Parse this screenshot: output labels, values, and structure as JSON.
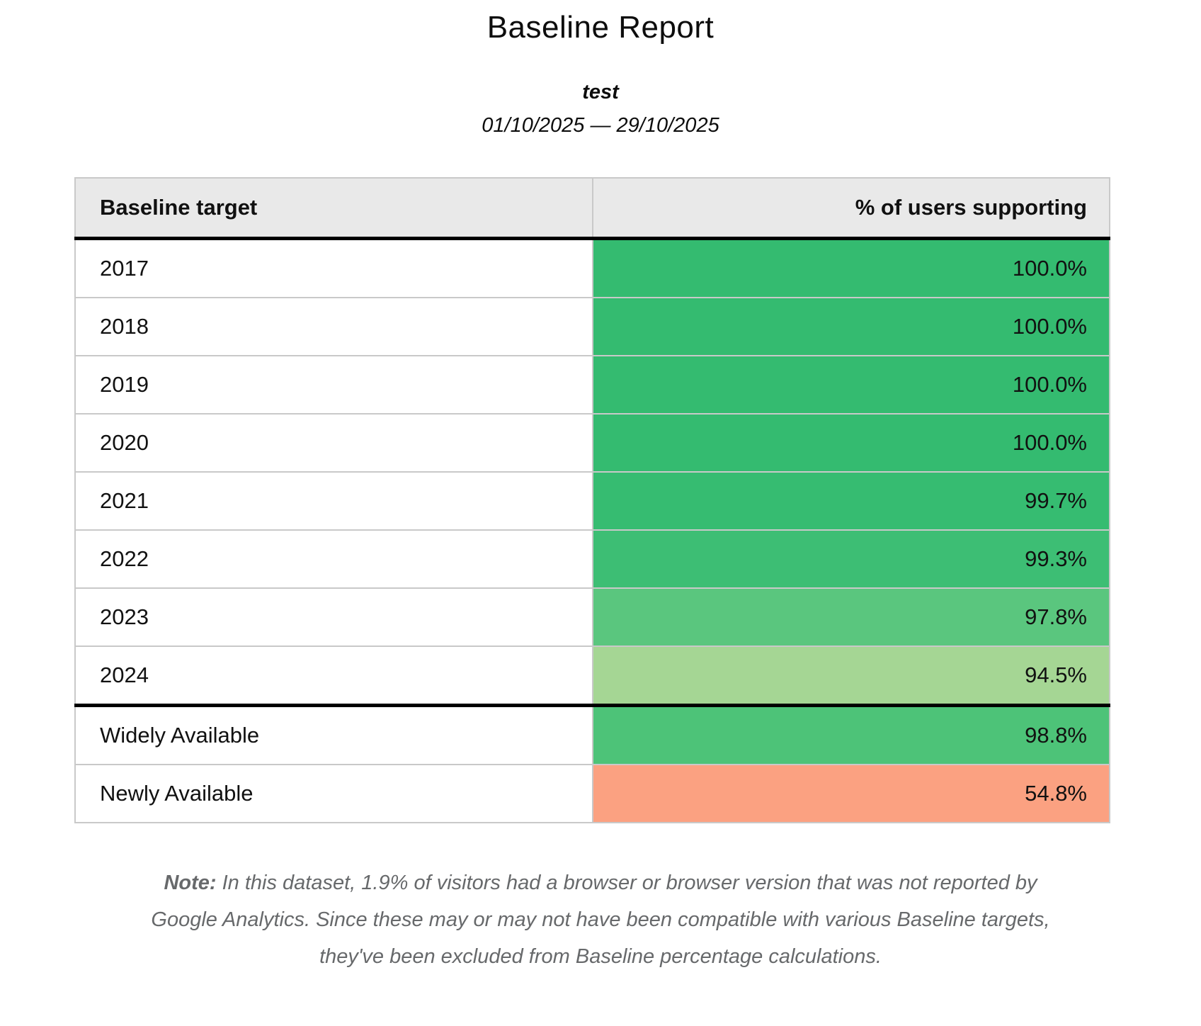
{
  "header": {
    "title": "Baseline Report",
    "subtitle": "test",
    "date_range": "01/10/2025 — 29/10/2025"
  },
  "table": {
    "columns": [
      "Baseline target",
      "% of users supporting"
    ],
    "rows": [
      {
        "label": "2017",
        "value": "100.0%",
        "color": "#34bb70",
        "section_break": false
      },
      {
        "label": "2018",
        "value": "100.0%",
        "color": "#34bb70",
        "section_break": false
      },
      {
        "label": "2019",
        "value": "100.0%",
        "color": "#34bb70",
        "section_break": false
      },
      {
        "label": "2020",
        "value": "100.0%",
        "color": "#34bb70",
        "section_break": false
      },
      {
        "label": "2021",
        "value": "99.7%",
        "color": "#36bc71",
        "section_break": false
      },
      {
        "label": "2022",
        "value": "99.3%",
        "color": "#3dbe74",
        "section_break": false
      },
      {
        "label": "2023",
        "value": "97.8%",
        "color": "#5ac67e",
        "section_break": false
      },
      {
        "label": "2024",
        "value": "94.5%",
        "color": "#a5d694",
        "section_break": false
      },
      {
        "label": "Widely Available",
        "value": "98.8%",
        "color": "#4dc378",
        "section_break": true
      },
      {
        "label": "Newly Available",
        "value": "54.8%",
        "color": "#fba181",
        "section_break": false
      }
    ]
  },
  "note": {
    "label": "Note:",
    "text": "In this dataset, 1.9% of visitors had a browser or browser version that was not reported by Google Analytics. Since these may or may not have been compatible with various Baseline targets, they've been excluded from Baseline percentage calculations."
  },
  "colors": {
    "header_background": "#e9e9e9",
    "grid_border": "#c9c9c9",
    "section_border": "#000000",
    "note_text": "#67696b",
    "green_full": "#34bb70",
    "orange_low": "#fba181"
  }
}
